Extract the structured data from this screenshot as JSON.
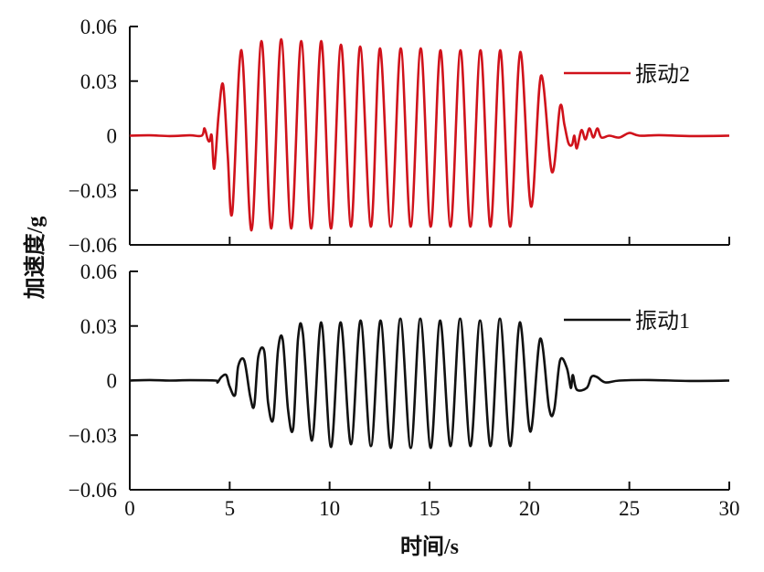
{
  "chart_data": {
    "type": "line",
    "layout": "two stacked panels sharing x axis",
    "xlabel": "时间/s",
    "ylabel": "加速度/g",
    "xlim": [
      0,
      30
    ],
    "ylim": [
      -0.06,
      0.06
    ],
    "x_ticks": [
      0,
      5,
      10,
      15,
      20,
      25,
      30
    ],
    "x_tick_labels": [
      "0",
      "5",
      "10",
      "15",
      "20",
      "25",
      "30"
    ],
    "y_ticks": [
      0.06,
      0.03,
      0,
      -0.03,
      -0.06
    ],
    "y_tick_labels": [
      "0.06",
      "0.03",
      "0",
      "−0.03",
      "−0.06"
    ],
    "grid": false,
    "panels": [
      {
        "position": "top",
        "legend_position": "top-right",
        "series": [
          {
            "name": "振动2",
            "color": "#d0121b",
            "points": [
              [
                0,
                0
              ],
              [
                1,
                0.0002
              ],
              [
                2,
                -0.0002
              ],
              [
                3,
                0.0002
              ],
              [
                3.6,
                0
              ],
              [
                3.74,
                0.004
              ],
              [
                3.9,
                -0.002
              ],
              [
                4.0,
                -0.003
              ],
              [
                4.1,
                0.0
              ],
              [
                4.23,
                -0.018
              ],
              [
                4.45,
                0.012
              ],
              [
                4.67,
                0.028
              ],
              [
                4.9,
                -0.01
              ],
              [
                5.13,
                -0.042
              ],
              [
                5.59,
                0.047
              ],
              [
                6.09,
                -0.052
              ],
              [
                6.59,
                0.052
              ],
              [
                7.08,
                -0.051
              ],
              [
                7.58,
                0.053
              ],
              [
                8.08,
                -0.051
              ],
              [
                8.58,
                0.052
              ],
              [
                9.08,
                -0.051
              ],
              [
                9.58,
                0.052
              ],
              [
                10.07,
                -0.051
              ],
              [
                10.57,
                0.05
              ],
              [
                11.07,
                -0.05
              ],
              [
                11.53,
                0.049
              ],
              [
                12.07,
                -0.05
              ],
              [
                12.52,
                0.048
              ],
              [
                13.06,
                -0.05
              ],
              [
                13.56,
                0.048
              ],
              [
                14.06,
                -0.05
              ],
              [
                14.56,
                0.048
              ],
              [
                15.06,
                -0.05
              ],
              [
                15.55,
                0.047
              ],
              [
                16.05,
                -0.05
              ],
              [
                16.55,
                0.047
              ],
              [
                17.05,
                -0.05
              ],
              [
                17.55,
                0.047
              ],
              [
                18.05,
                -0.05
              ],
              [
                18.54,
                0.047
              ],
              [
                19.04,
                -0.05
              ],
              [
                19.54,
                0.046
              ],
              [
                20.08,
                -0.039
              ],
              [
                20.58,
                0.033
              ],
              [
                21.13,
                -0.02
              ],
              [
                21.53,
                0.016
              ],
              [
                21.75,
                0.006
              ],
              [
                21.95,
                -0.004
              ],
              [
                22.13,
                -0.005
              ],
              [
                22.25,
                0.0
              ],
              [
                22.37,
                -0.007
              ],
              [
                22.6,
                0.003
              ],
              [
                22.8,
                -0.002
              ],
              [
                23.0,
                0.004
              ],
              [
                23.2,
                -0.001
              ],
              [
                23.4,
                0.004
              ],
              [
                23.6,
                -0.001
              ],
              [
                24.0,
                0.0
              ],
              [
                24.5,
                -0.001
              ],
              [
                25.0,
                0.0015
              ],
              [
                25.5,
                0
              ],
              [
                26.5,
                0.0003
              ],
              [
                28,
                -0.0002
              ],
              [
                30,
                0
              ]
            ]
          }
        ]
      },
      {
        "position": "bottom",
        "legend_position": "top-right",
        "series": [
          {
            "name": "振动1",
            "color": "#111111",
            "points": [
              [
                0,
                0
              ],
              [
                1,
                0.0003
              ],
              [
                2,
                0
              ],
              [
                3,
                0.0002
              ],
              [
                4.3,
                0
              ],
              [
                4.39,
                -0.001
              ],
              [
                4.59,
                0.002
              ],
              [
                4.83,
                0.003
              ],
              [
                4.99,
                -0.003
              ],
              [
                5.27,
                -0.008
              ],
              [
                5.43,
                0.008
              ],
              [
                5.73,
                0.011
              ],
              [
                6.03,
                -0.009
              ],
              [
                6.23,
                -0.0136
              ],
              [
                6.43,
                0.013
              ],
              [
                6.73,
                0.016
              ],
              [
                6.92,
                -0.012
              ],
              [
                7.18,
                -0.021
              ],
              [
                7.42,
                0.017
              ],
              [
                7.66,
                0.022
              ],
              [
                7.92,
                -0.016
              ],
              [
                8.18,
                -0.026
              ],
              [
                8.42,
                0.023
              ],
              [
                8.66,
                0.026
              ],
              [
                9.12,
                -0.033
              ],
              [
                9.58,
                0.032
              ],
              [
                10.07,
                -0.0365
              ],
              [
                10.55,
                0.032
              ],
              [
                11.07,
                -0.035
              ],
              [
                11.55,
                0.033
              ],
              [
                12.07,
                -0.036
              ],
              [
                12.55,
                0.033
              ],
              [
                13.06,
                -0.037
              ],
              [
                13.54,
                0.034
              ],
              [
                14.06,
                -0.037
              ],
              [
                14.54,
                0.034
              ],
              [
                15.06,
                -0.037
              ],
              [
                15.53,
                0.033
              ],
              [
                16.05,
                -0.036
              ],
              [
                16.53,
                0.034
              ],
              [
                17.05,
                -0.036
              ],
              [
                17.53,
                0.033
              ],
              [
                18.05,
                -0.036
              ],
              [
                18.52,
                0.034
              ],
              [
                19.04,
                -0.036
              ],
              [
                19.52,
                0.032
              ],
              [
                20.04,
                -0.028
              ],
              [
                20.54,
                0.023
              ],
              [
                20.98,
                -0.015
              ],
              [
                21.24,
                -0.016
              ],
              [
                21.53,
                0.011
              ],
              [
                21.87,
                0.007
              ],
              [
                22.07,
                -0.004
              ],
              [
                22.17,
                0.003
              ],
              [
                22.37,
                -0.005
              ],
              [
                22.87,
                -0.004
              ],
              [
                23.1,
                0.002
              ],
              [
                23.37,
                0.002
              ],
              [
                23.8,
                -0.001
              ],
              [
                24.5,
                0
              ],
              [
                26,
                0.0003
              ],
              [
                28,
                -0.0002
              ],
              [
                30,
                0
              ]
            ]
          }
        ]
      }
    ]
  }
}
